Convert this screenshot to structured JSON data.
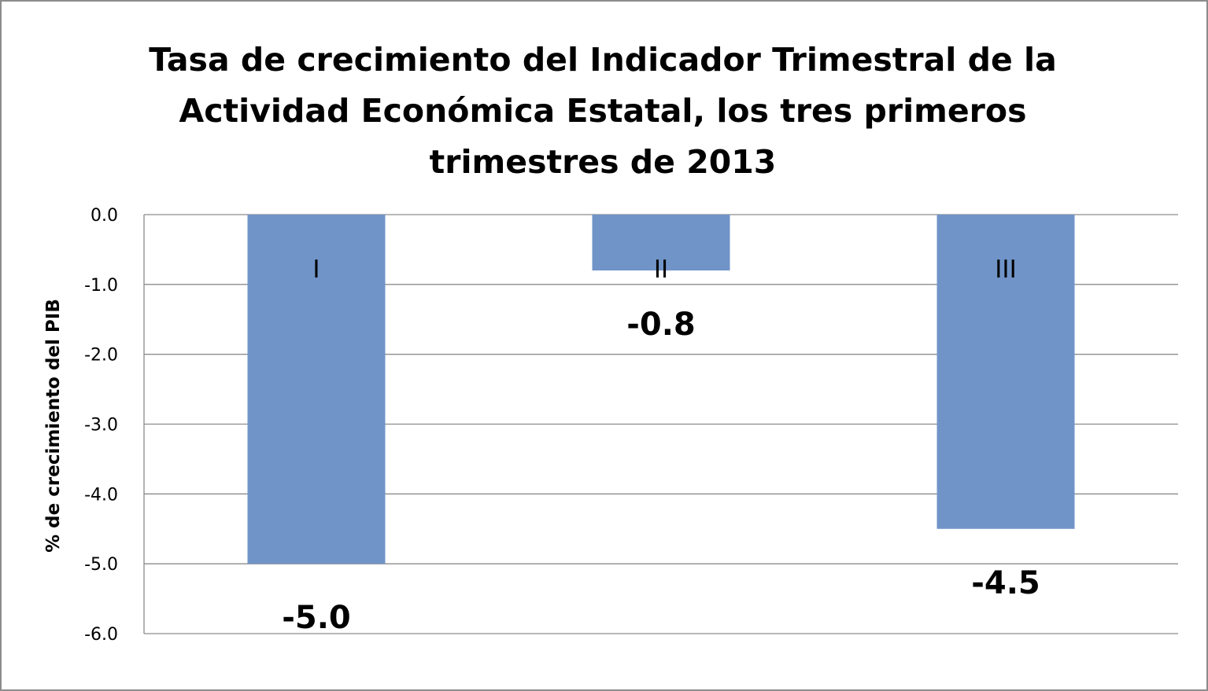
{
  "chart_data": {
    "type": "bar",
    "title": "Tasa de crecimiento del Indicador Trimestral de la Actividad  Económica Estatal, los tres primeros trimestres de 2013",
    "title_lines": [
      "Tasa de crecimiento del Indicador Trimestral de la",
      "Actividad  Económica Estatal, los tres primeros",
      "trimestres de 2013"
    ],
    "ylabel": "% de crecimiento del PIB",
    "xlabel": "",
    "categories": [
      "I",
      "II",
      "III"
    ],
    "values": [
      -5.0,
      -0.8,
      -4.5
    ],
    "data_labels": [
      "-5.0",
      "-0.8",
      "-4.5"
    ],
    "ylim": [
      -6.0,
      0.0
    ],
    "yticks": [
      "0.0",
      "-1.0",
      "-2.0",
      "-3.0",
      "-4.0",
      "-5.0",
      "-6.0"
    ],
    "grid": true,
    "legend": "none",
    "bar_color": "#7094c8",
    "grid_color": "#8c8c8c"
  }
}
